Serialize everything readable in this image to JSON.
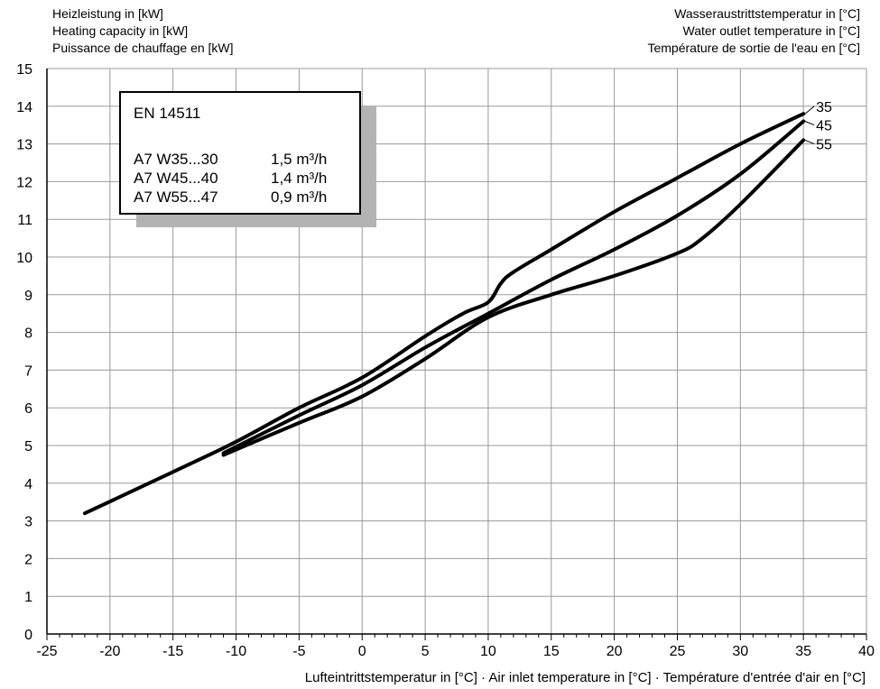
{
  "chart_data": {
    "type": "line",
    "ylabel_lines": [
      "Heizleistung in [kW]",
      "Heating capacity in [kW]",
      "Puissance de chauffage en [kW]"
    ],
    "legend_title_lines": [
      "Wasseraustrittstemperatur in [°C]",
      "Water outlet temperature in [°C]",
      "Température de sortie de l'eau en [°C]"
    ],
    "xlabel": "Lufteintrittstemperatur in [°C] · Air inlet temperature in [°C] · Température d'entrée d'air en [°C]",
    "xlim": [
      -25,
      40
    ],
    "ylim": [
      0,
      15
    ],
    "x_ticks": [
      "-25",
      "-20",
      "-15",
      "-10",
      "-5",
      "0",
      "5",
      "10",
      "15",
      "20",
      "25",
      "30",
      "35",
      "40"
    ],
    "y_ticks": [
      "0",
      "1",
      "2",
      "3",
      "4",
      "5",
      "6",
      "7",
      "8",
      "9",
      "10",
      "11",
      "12",
      "13",
      "14",
      "15"
    ],
    "grid": true,
    "info_box": {
      "title": "EN 14511",
      "rows": [
        {
          "label": "A7 W35...30",
          "value": "1,5 m³/h"
        },
        {
          "label": "A7 W45...40",
          "value": "1,4 m³/h"
        },
        {
          "label": "A7 W55...47",
          "value": "0,9 m³/h"
        }
      ]
    },
    "series": [
      {
        "name": "35",
        "x": [
          -22,
          -15,
          -10,
          -5,
          0,
          5,
          8,
          10,
          11,
          12,
          15,
          20,
          25,
          30,
          35
        ],
        "y": [
          3.2,
          4.3,
          5.1,
          6.0,
          6.8,
          7.9,
          8.5,
          8.8,
          9.3,
          9.6,
          10.2,
          11.2,
          12.1,
          13.0,
          13.8
        ]
      },
      {
        "name": "45",
        "x": [
          -11,
          -5,
          0,
          5,
          10,
          15,
          20,
          25,
          30,
          35
        ],
        "y": [
          4.8,
          5.8,
          6.6,
          7.6,
          8.5,
          9.4,
          10.2,
          11.1,
          12.2,
          13.6
        ]
      },
      {
        "name": "55",
        "x": [
          -11,
          -5,
          0,
          5,
          10,
          15,
          20,
          25,
          27,
          30,
          35
        ],
        "y": [
          4.75,
          5.6,
          6.3,
          7.3,
          8.4,
          9.0,
          9.5,
          10.1,
          10.5,
          11.4,
          13.1
        ]
      }
    ]
  }
}
